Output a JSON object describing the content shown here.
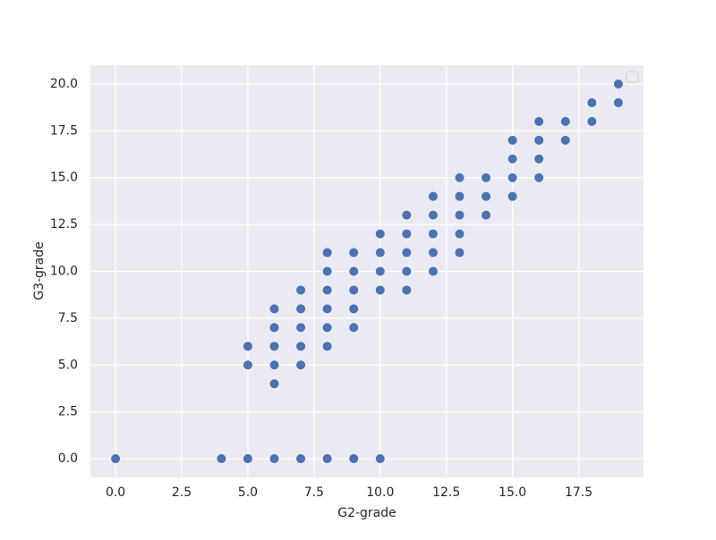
{
  "chart_data": {
    "type": "scatter",
    "xlabel": "G2-grade",
    "ylabel": "G3-grade",
    "x": [
      0,
      4,
      5,
      5,
      5,
      6,
      6,
      6,
      6,
      6,
      6,
      7,
      7,
      7,
      7,
      7,
      7,
      8,
      8,
      8,
      8,
      8,
      8,
      8,
      9,
      9,
      9,
      9,
      9,
      9,
      10,
      10,
      10,
      10,
      10,
      11,
      11,
      11,
      11,
      11,
      12,
      12,
      12,
      12,
      12,
      13,
      13,
      13,
      13,
      13,
      14,
      14,
      14,
      15,
      15,
      15,
      15,
      16,
      16,
      16,
      16,
      17,
      17,
      18,
      18,
      19,
      19
    ],
    "y": [
      0,
      0,
      0,
      5,
      6,
      0,
      4,
      5,
      6,
      7,
      8,
      0,
      5,
      6,
      7,
      8,
      9,
      0,
      6,
      7,
      8,
      9,
      10,
      11,
      0,
      7,
      8,
      9,
      10,
      11,
      0,
      9,
      10,
      11,
      12,
      9,
      10,
      11,
      12,
      13,
      10,
      11,
      12,
      13,
      14,
      11,
      12,
      13,
      14,
      15,
      13,
      14,
      15,
      14,
      15,
      16,
      17,
      15,
      16,
      17,
      18,
      17,
      18,
      18,
      19,
      19,
      20
    ],
    "color": "#4c72b0",
    "xlim": [
      -0.95,
      19.95
    ],
    "ylim": [
      -1,
      21
    ],
    "xticks": [
      {
        "value": 0,
        "label": "0.0"
      },
      2.5,
      {
        "value": 5,
        "label": "5.0"
      },
      7.5,
      {
        "value": 10,
        "label": "10.0"
      },
      12.5,
      {
        "value": 15,
        "label": "15.0"
      },
      17.5
    ],
    "yticks": [
      {
        "value": 0,
        "label": "0.0"
      },
      2.5,
      {
        "value": 5,
        "label": "5.0"
      },
      7.5,
      {
        "value": 10,
        "label": "10.0"
      },
      12.5,
      {
        "value": 15,
        "label": "15.0"
      },
      17.5,
      {
        "value": 20,
        "label": "20.0"
      }
    ],
    "grid": true
  }
}
